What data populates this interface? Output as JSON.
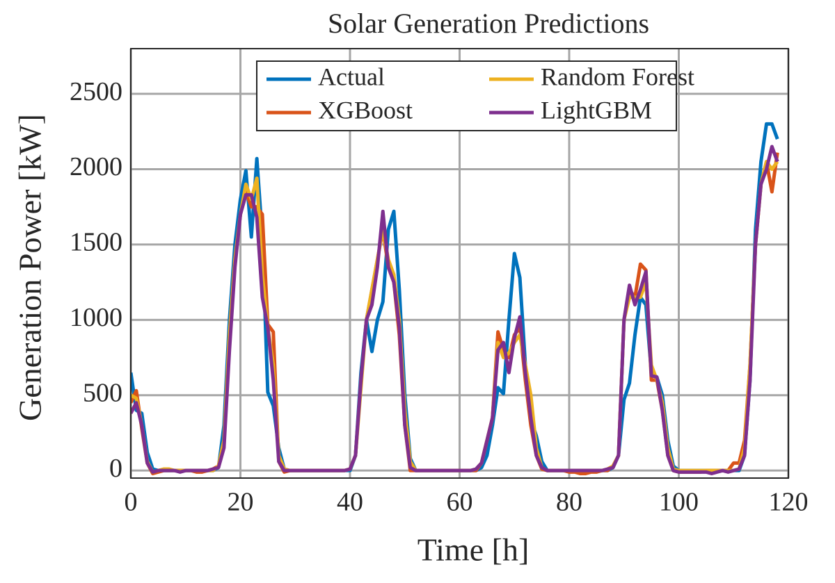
{
  "chart_data": {
    "type": "line",
    "title": "Solar Generation Predictions",
    "x_label": "Time [h]",
    "y_label": "Generation Power [kW]",
    "xlim": [
      0,
      120
    ],
    "ylim": [
      -50,
      2800
    ],
    "xticks": [
      0,
      20,
      40,
      60,
      80,
      100,
      120
    ],
    "yticks": [
      0,
      500,
      1000,
      1500,
      2000,
      2500
    ],
    "grid": true,
    "legend": "north",
    "x": [
      0,
      1,
      2,
      3,
      4,
      5,
      6,
      7,
      8,
      9,
      10,
      11,
      12,
      13,
      14,
      15,
      16,
      17,
      18,
      19,
      20,
      21,
      22,
      23,
      24,
      25,
      26,
      27,
      28,
      29,
      30,
      31,
      32,
      33,
      34,
      35,
      36,
      37,
      38,
      39,
      40,
      41,
      42,
      43,
      44,
      45,
      46,
      47,
      48,
      49,
      50,
      51,
      52,
      53,
      54,
      55,
      56,
      57,
      58,
      59,
      60,
      61,
      62,
      63,
      64,
      65,
      66,
      67,
      68,
      69,
      70,
      71,
      72,
      73,
      74,
      75,
      76,
      77,
      78,
      79,
      80,
      81,
      82,
      83,
      84,
      85,
      86,
      87,
      88,
      89,
      90,
      91,
      92,
      93,
      94,
      95,
      96,
      97,
      98,
      99,
      100,
      101,
      102,
      103,
      104,
      105,
      106,
      107,
      108,
      109,
      110,
      111,
      112,
      113,
      114,
      115,
      116,
      117,
      118
    ],
    "series": [
      {
        "name": "Actual",
        "color": "#0072BD",
        "values": [
          650,
          400,
          380,
          120,
          10,
          0,
          0,
          0,
          0,
          0,
          0,
          0,
          0,
          0,
          0,
          0,
          20,
          300,
          1000,
          1500,
          1800,
          1990,
          1550,
          2070,
          1550,
          520,
          430,
          150,
          10,
          0,
          0,
          0,
          0,
          0,
          0,
          0,
          0,
          0,
          0,
          0,
          0,
          100,
          650,
          1000,
          790,
          1000,
          1120,
          1600,
          1720,
          1200,
          500,
          80,
          0,
          0,
          0,
          0,
          0,
          0,
          0,
          0,
          0,
          0,
          0,
          0,
          20,
          100,
          300,
          550,
          510,
          1000,
          1440,
          1280,
          700,
          340,
          230,
          60,
          0,
          0,
          0,
          0,
          0,
          0,
          0,
          0,
          0,
          0,
          0,
          0,
          20,
          100,
          470,
          580,
          900,
          1150,
          1100,
          650,
          620,
          500,
          200,
          30,
          0,
          0,
          0,
          0,
          0,
          0,
          0,
          0,
          0,
          0,
          0,
          0,
          100,
          600,
          1600,
          2050,
          2300,
          2300,
          2200
        ]
      },
      {
        "name": "XGBoost",
        "color": "#D95319",
        "values": [
          450,
          530,
          280,
          50,
          -20,
          -10,
          0,
          0,
          0,
          0,
          0,
          0,
          -10,
          -10,
          0,
          10,
          30,
          200,
          900,
          1400,
          1700,
          1850,
          1750,
          1750,
          1700,
          970,
          920,
          60,
          -10,
          0,
          0,
          0,
          0,
          0,
          0,
          0,
          0,
          0,
          0,
          0,
          10,
          100,
          600,
          1000,
          1200,
          1400,
          1600,
          1350,
          1250,
          900,
          300,
          0,
          0,
          0,
          0,
          0,
          0,
          0,
          0,
          0,
          0,
          0,
          0,
          0,
          50,
          200,
          350,
          920,
          800,
          750,
          900,
          950,
          600,
          300,
          100,
          10,
          0,
          0,
          0,
          0,
          -10,
          -10,
          -20,
          -20,
          -10,
          -10,
          0,
          0,
          30,
          100,
          1000,
          1200,
          1150,
          1370,
          1330,
          600,
          600,
          400,
          100,
          0,
          -10,
          -10,
          -10,
          -10,
          -10,
          0,
          0,
          0,
          0,
          0,
          50,
          50,
          200,
          700,
          1500,
          1900,
          2050,
          1850,
          2110
        ]
      },
      {
        "name": "Random Forest",
        "color": "#EDB120",
        "values": [
          500,
          480,
          300,
          60,
          -10,
          0,
          10,
          10,
          0,
          0,
          0,
          0,
          0,
          0,
          0,
          0,
          30,
          200,
          900,
          1400,
          1700,
          1900,
          1800,
          1940,
          1300,
          950,
          700,
          100,
          10,
          0,
          0,
          0,
          0,
          0,
          0,
          0,
          0,
          0,
          0,
          0,
          10,
          100,
          550,
          1000,
          1200,
          1400,
          1600,
          1400,
          1300,
          1000,
          400,
          60,
          0,
          0,
          0,
          0,
          0,
          0,
          0,
          0,
          0,
          0,
          0,
          10,
          50,
          200,
          350,
          850,
          750,
          780,
          850,
          900,
          700,
          500,
          150,
          20,
          0,
          0,
          0,
          0,
          0,
          0,
          0,
          0,
          0,
          0,
          0,
          10,
          30,
          100,
          1000,
          1150,
          1150,
          1150,
          1250,
          700,
          600,
          450,
          150,
          10,
          0,
          0,
          0,
          0,
          0,
          0,
          0,
          0,
          0,
          0,
          0,
          10,
          150,
          700,
          1500,
          1900,
          2050,
          2000,
          2050
        ]
      },
      {
        "name": "LightGBM",
        "color": "#7E2F8E",
        "values": [
          380,
          450,
          300,
          50,
          -10,
          0,
          0,
          0,
          0,
          -10,
          0,
          0,
          0,
          0,
          0,
          10,
          20,
          150,
          800,
          1350,
          1700,
          1830,
          1830,
          1680,
          1150,
          950,
          600,
          60,
          0,
          0,
          0,
          0,
          0,
          0,
          0,
          0,
          0,
          0,
          0,
          0,
          10,
          100,
          600,
          1000,
          1100,
          1350,
          1720,
          1350,
          1250,
          950,
          300,
          20,
          0,
          0,
          0,
          0,
          0,
          0,
          0,
          0,
          0,
          0,
          0,
          10,
          50,
          200,
          350,
          800,
          850,
          650,
          880,
          1020,
          650,
          350,
          100,
          20,
          0,
          0,
          0,
          0,
          0,
          0,
          0,
          0,
          0,
          0,
          0,
          10,
          20,
          100,
          1000,
          1230,
          1100,
          1200,
          1320,
          630,
          620,
          400,
          100,
          0,
          -10,
          -10,
          -10,
          -10,
          -10,
          -10,
          -20,
          -10,
          0,
          -10,
          0,
          10,
          100,
          600,
          1500,
          1900,
          2000,
          2150,
          2050
        ]
      }
    ]
  }
}
